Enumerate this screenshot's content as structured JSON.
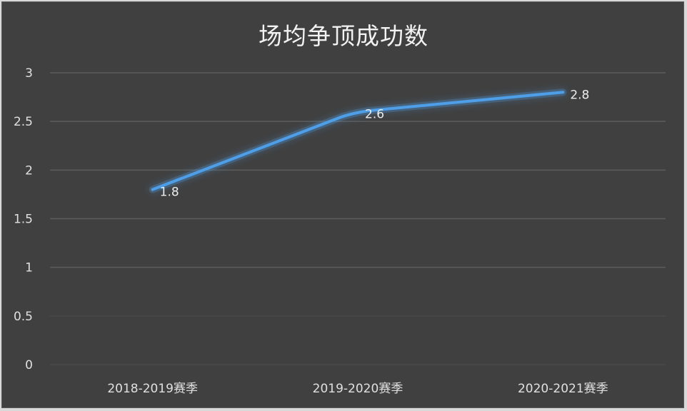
{
  "chart_data": {
    "type": "line",
    "title": "场均争顶成功数",
    "categories": [
      "2018-2019赛季",
      "2019-2020赛季",
      "2020-2021赛季"
    ],
    "series": [
      {
        "name": "场均争顶成功数",
        "values": [
          1.8,
          2.6,
          2.8
        ],
        "color": "#4f9ee8"
      }
    ],
    "data_labels": [
      "1.8",
      "2.6",
      "2.8"
    ],
    "y_ticks": [
      "0",
      "0.5",
      "1",
      "1.5",
      "2",
      "2.5",
      "3"
    ],
    "xlabel": "",
    "ylabel": "",
    "ylim": [
      0,
      3
    ],
    "grid": true,
    "legend": "none"
  },
  "colors": {
    "background": "#404040",
    "grid": "#5c5c5c",
    "line": "#4f9ee8",
    "text": "#e0e0e0"
  }
}
